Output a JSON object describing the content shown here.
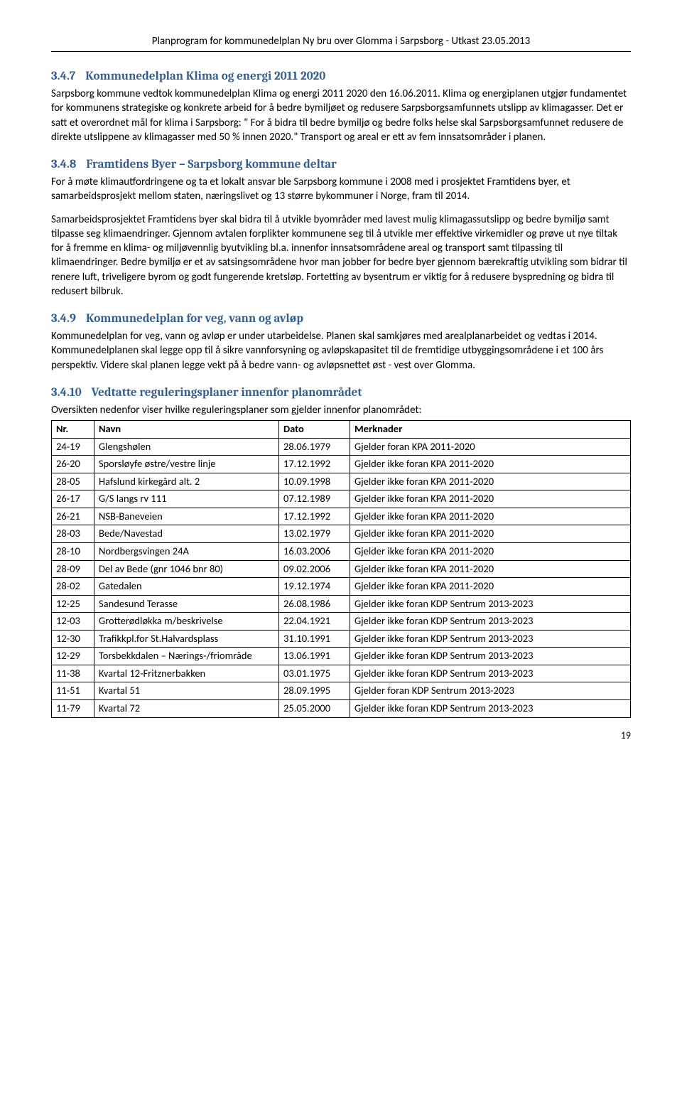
{
  "header": {
    "title": "Planprogram for kommunedelplan Ny bru over Glomma i Sarpsborg - Utkast 23.05.2013"
  },
  "sections": {
    "s347": {
      "num": "3.4.7",
      "title": "Kommunedelplan Klima og energi 2011 2020",
      "p1": "Sarpsborg kommune vedtok kommunedelplan Klima og energi 2011 2020 den 16.06.2011. Klima og energiplanen utgjør fundamentet for kommunens strategiske og konkrete arbeid for å bedre bymiljøet og redusere Sarpsborgsamfunnets utslipp av klimagasser. Det er satt et overordnet mål for klima i Sarpsborg: \" For å bidra til bedre bymiljø og bedre folks helse skal Sarpsborgsamfunnet redusere de direkte utslippene av klimagasser med 50 % innen 2020.\" Transport og areal er ett av fem innsatsområder i planen."
    },
    "s348": {
      "num": "3.4.8",
      "title": "Framtidens Byer – Sarpsborg kommune deltar",
      "p1": "For å møte klimautfordringene og ta et lokalt ansvar ble Sarpsborg kommune i 2008 med i prosjektet Framtidens byer, et samarbeidsprosjekt mellom staten, næringslivet og 13 større bykommuner i Norge, fram til 2014.",
      "p2": "Samarbeidsprosjektet Framtidens byer skal bidra til å utvikle byområder med lavest mulig klimagassutslipp og bedre bymiljø samt tilpasse seg klimaendringer. Gjennom avtalen forplikter kommunene seg til å utvikle mer effektive virkemidler og prøve ut nye tiltak for å fremme en klima- og miljøvennlig byutvikling bl.a. innenfor innsatsområdene areal og transport samt tilpassing til klimaendringer. Bedre bymiljø er et av satsingsområdene hvor man jobber for bedre byer gjennom bærekraftig utvikling som bidrar til renere luft, triveligere byrom og godt fungerende kretsløp. Fortetting av bysentrum er viktig for å redusere byspredning og bidra til redusert bilbruk."
    },
    "s349": {
      "num": "3.4.9",
      "title": "Kommunedelplan for veg, vann og avløp",
      "p1": "Kommunedelplan for veg, vann og avløp er under utarbeidelse. Planen skal samkjøres med arealplanarbeidet og vedtas i 2014. Kommunedelplanen skal legge opp til å sikre vannforsyning og avløpskapasitet til de fremtidige utbyggingsområdene i et 100 års perspektiv. Videre skal planen legge vekt på å bedre vann- og avløpsnettet øst - vest over Glomma."
    },
    "s3410": {
      "num": "3.4.10",
      "title": "Vedtatte reguleringsplaner innenfor planområdet",
      "p1": "Oversikten nedenfor viser hvilke reguleringsplaner som gjelder innenfor planområdet:"
    }
  },
  "table": {
    "headers": {
      "nr": "Nr.",
      "navn": "Navn",
      "dato": "Dato",
      "merk": "Merknader"
    },
    "rows": [
      {
        "nr": "24-19",
        "navn": "Glengshølen",
        "dato": "28.06.1979",
        "merk": "Gjelder foran KPA 2011-2020"
      },
      {
        "nr": "26-20",
        "navn": "Sporsløyfe østre/vestre linje",
        "dato": "17.12.1992",
        "merk": "Gjelder ikke foran KPA 2011-2020"
      },
      {
        "nr": "28-05",
        "navn": "Hafslund kirkegård alt. 2",
        "dato": "10.09.1998",
        "merk": "Gjelder ikke foran KPA 2011-2020"
      },
      {
        "nr": "26-17",
        "navn": "G/S langs rv 111",
        "dato": "07.12.1989",
        "merk": "Gjelder ikke foran KPA 2011-2020"
      },
      {
        "nr": "26-21",
        "navn": "NSB-Baneveien",
        "dato": "17.12.1992",
        "merk": "Gjelder ikke foran KPA 2011-2020"
      },
      {
        "nr": "28-03",
        "navn": "Bede/Navestad",
        "dato": "13.02.1979",
        "merk": "Gjelder ikke foran KPA 2011-2020"
      },
      {
        "nr": "28-10",
        "navn": "Nordbergsvingen 24A",
        "dato": "16.03.2006",
        "merk": "Gjelder ikke foran KPA 2011-2020"
      },
      {
        "nr": "28-09",
        "navn": "Del av Bede (gnr 1046 bnr 80)",
        "dato": "09.02.2006",
        "merk": "Gjelder ikke foran KPA 2011-2020"
      },
      {
        "nr": "28-02",
        "navn": "Gatedalen",
        "dato": "19.12.1974",
        "merk": "Gjelder ikke foran KPA 2011-2020"
      },
      {
        "nr": "12-25",
        "navn": "Sandesund Terasse",
        "dato": "26.08.1986",
        "merk": "Gjelder ikke foran KDP Sentrum 2013-2023"
      },
      {
        "nr": "12-03",
        "navn": "Grotterødløkka m/beskrivelse",
        "dato": "22.04.1921",
        "merk": "Gjelder ikke foran KDP Sentrum 2013-2023"
      },
      {
        "nr": "12-30",
        "navn": "Trafikkpl.for St.Halvardsplass",
        "dato": "31.10.1991",
        "merk": "Gjelder ikke foran KDP Sentrum 2013-2023"
      },
      {
        "nr": "12-29",
        "navn": "Torsbekkdalen – Nærings-/friområde",
        "dato": "13.06.1991",
        "merk": "Gjelder ikke foran KDP Sentrum 2013-2023"
      },
      {
        "nr": "11-38",
        "navn": "Kvartal 12-Fritznerbakken",
        "dato": "03.01.1975",
        "merk": "Gjelder ikke foran KDP Sentrum 2013-2023"
      },
      {
        "nr": "11-51",
        "navn": "Kvartal 51",
        "dato": "28.09.1995",
        "merk": "Gjelder foran KDP Sentrum 2013-2023"
      },
      {
        "nr": "11-79",
        "navn": "Kvartal 72",
        "dato": "25.05.2000",
        "merk": "Gjelder ikke foran KDP Sentrum 2013-2023"
      }
    ]
  },
  "pageNumber": "19"
}
